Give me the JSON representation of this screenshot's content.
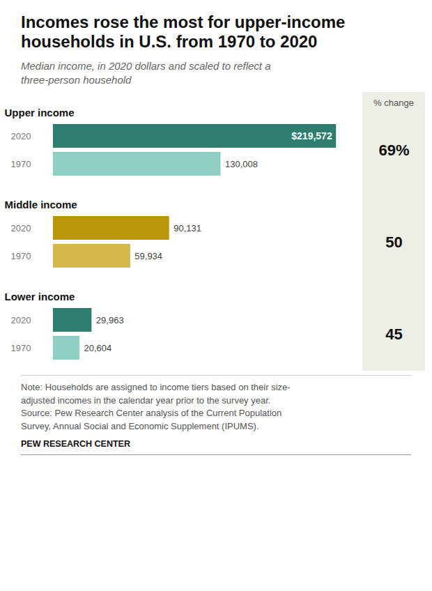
{
  "chart_data": {
    "type": "bar",
    "orientation": "horizontal",
    "title": "Incomes rose the most for upper-income\nhouseholds in U.S. from 1970 to 2020",
    "subtitle": "Median income, in 2020 dollars and scaled to reflect a\nthree-person household",
    "categories": [
      "Upper income",
      "Middle income",
      "Lower income"
    ],
    "series": [
      {
        "name": "2020",
        "values": [
          219572,
          90131,
          29963
        ],
        "value_labels": [
          "$219,572",
          "90,131",
          "29,963"
        ],
        "colors": [
          "#2e7d6e",
          "#b8960c",
          "#2e7d6e"
        ]
      },
      {
        "name": "1970",
        "values": [
          130008,
          59934,
          20604
        ],
        "value_labels": [
          "130,008",
          "59,934",
          "20,604"
        ],
        "colors": [
          "#8ecfc4",
          "#d4b84a",
          "#8ecfc4"
        ]
      }
    ],
    "pct_change": {
      "label": "% change",
      "values": [
        69,
        50,
        45
      ],
      "value_labels": [
        "69%",
        "50",
        "45"
      ]
    },
    "xlim": [
      -14000,
      240000
    ],
    "data_labels": true,
    "tick_labels": false,
    "note": "Note: Households are assigned to income tiers based on their size-\nadjusted incomes in the calendar year prior to the survey year.\nSource: Pew Research Center analysis of the Current Population\nSurvey, Annual Social and Economic Supplement (IPUMS).",
    "source": "PEW RESEARCH CENTER"
  }
}
